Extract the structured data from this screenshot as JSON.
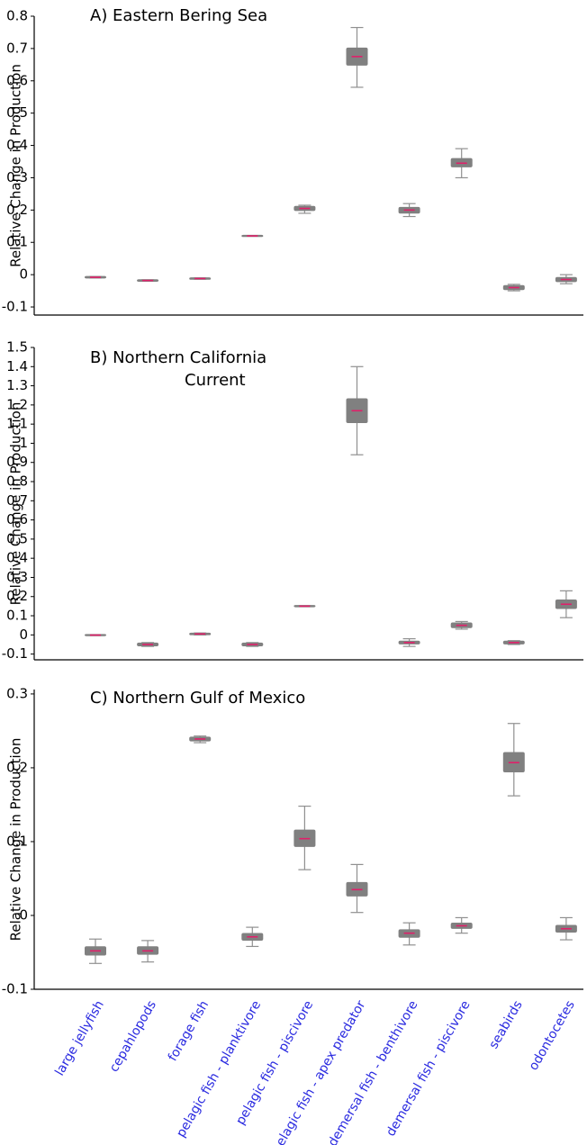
{
  "chart_data": [
    {
      "type": "box",
      "title": "A) Eastern Bering Sea",
      "ylabel": "Relative Change in Production",
      "ylim": [
        -0.125,
        0.8
      ],
      "yticks": [
        -0.1,
        0,
        0.1,
        0.2,
        0.3,
        0.4,
        0.5,
        0.6,
        0.7,
        0.8
      ],
      "box_color": "#808080",
      "median_color": "#e0206a",
      "whisker_color": "#909090",
      "values": [
        [
          -0.01,
          -0.009,
          -0.008,
          -0.007,
          -0.006
        ],
        [
          -0.02,
          -0.019,
          -0.018,
          -0.017,
          -0.016
        ],
        [
          -0.014,
          -0.013,
          -0.012,
          -0.011,
          -0.01
        ],
        [
          0.119,
          0.1195,
          0.12,
          0.1205,
          0.121
        ],
        [
          0.19,
          0.2,
          0.205,
          0.21,
          0.215
        ],
        [
          0.58,
          0.65,
          0.675,
          0.7,
          0.765
        ],
        [
          0.18,
          0.192,
          0.2,
          0.207,
          0.22
        ],
        [
          0.3,
          0.335,
          0.345,
          0.358,
          0.39
        ],
        [
          -0.05,
          -0.045,
          -0.04,
          -0.035,
          -0.03
        ],
        [
          -0.028,
          -0.02,
          -0.015,
          -0.01,
          0
        ]
      ]
    },
    {
      "type": "box",
      "title": [
        "B) Northern California",
        "Current"
      ],
      "ylabel": "Relative Change in Production",
      "ylim": [
        -0.13,
        1.5
      ],
      "yticks": [
        -0.1,
        0,
        0.1,
        0.2,
        0.3,
        0.4,
        0.5,
        0.6,
        0.7,
        0.8,
        0.9,
        1,
        1.1,
        1.2,
        1.3,
        1.4,
        1.5
      ],
      "box_color": "#808080",
      "median_color": "#e0206a",
      "whisker_color": "#909090",
      "values": [
        [
          -0.003,
          -0.002,
          -0.001,
          0,
          0.001
        ],
        [
          -0.06,
          -0.055,
          -0.05,
          -0.045,
          -0.04
        ],
        [
          0,
          0.003,
          0.005,
          0.007,
          0.01
        ],
        [
          -0.06,
          -0.055,
          -0.05,
          -0.045,
          -0.04
        ],
        [
          0.148,
          0.149,
          0.15,
          0.151,
          0.152
        ],
        [
          0.94,
          1.11,
          1.17,
          1.23,
          1.4
        ],
        [
          -0.06,
          -0.045,
          -0.04,
          -0.035,
          -0.02
        ],
        [
          0.03,
          0.04,
          0.05,
          0.06,
          0.07
        ],
        [
          -0.05,
          -0.045,
          -0.04,
          -0.035,
          -0.03
        ],
        [
          0.09,
          0.14,
          0.16,
          0.18,
          0.23
        ]
      ]
    },
    {
      "type": "box",
      "title": "C) Northern Gulf of Mexico",
      "ylabel": "Relative Change in Production",
      "ylim": [
        -0.1,
        0.306
      ],
      "yticks": [
        -0.1,
        0,
        0.1,
        0.2,
        0.3
      ],
      "box_color": "#808080",
      "median_color": "#e0206a",
      "whisker_color": "#909090",
      "category_color": "#2a2ae0",
      "categories": [
        "large jellyfish",
        "cepahlopods",
        "forage fish",
        "pelagic fish - planktivore",
        "pelagic fish - piscivore",
        "pelagic fish - apex predator",
        "demersal fish - benthivore",
        "demersal fish - piscivore",
        "seabirds",
        "odontocetes"
      ],
      "values": [
        [
          -0.065,
          -0.053,
          -0.048,
          -0.043,
          -0.032
        ],
        [
          -0.063,
          -0.052,
          -0.048,
          -0.043,
          -0.034
        ],
        [
          0.234,
          0.237,
          0.239,
          0.241,
          0.243
        ],
        [
          -0.042,
          -0.033,
          -0.029,
          -0.025,
          -0.016
        ],
        [
          0.062,
          0.094,
          0.104,
          0.115,
          0.148
        ],
        [
          0.004,
          0.027,
          0.035,
          0.044,
          0.069
        ],
        [
          -0.04,
          -0.029,
          -0.024,
          -0.02,
          -0.01
        ],
        [
          -0.024,
          -0.017,
          -0.014,
          -0.011,
          -0.003
        ],
        [
          0.162,
          0.195,
          0.207,
          0.22,
          0.26
        ],
        [
          -0.033,
          -0.022,
          -0.018,
          -0.014,
          -0.003
        ]
      ]
    }
  ]
}
